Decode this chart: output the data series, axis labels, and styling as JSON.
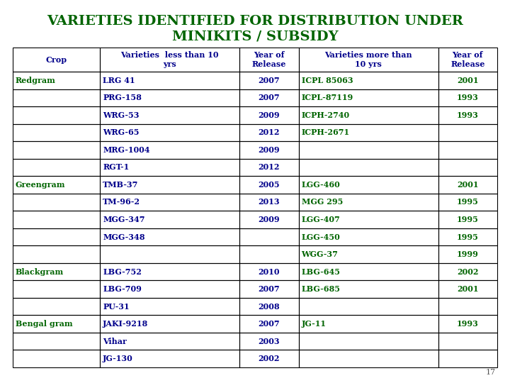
{
  "title_line1": "VARIETIES IDENTIFIED FOR DISTRIBUTION UNDER",
  "title_line2": "MINIKITS / SUBSIDY",
  "title_color": "#006400",
  "bg_color": "#ffffff",
  "header_color": "#00008B",
  "col_headers": [
    "Crop",
    "Varieties  less than 10\nyrs",
    "Year of\nRelease",
    "Varieties more than\n10 yrs",
    "Year of\nRelease"
  ],
  "rows": [
    [
      "Redgram",
      "LRG 41",
      "2007",
      "ICPL 85063",
      "2001"
    ],
    [
      "",
      "PRG-158",
      "2007",
      "ICPL-87119",
      "1993"
    ],
    [
      "",
      "WRG-53",
      "2009",
      "ICPH-2740",
      "1993"
    ],
    [
      "",
      "WRG-65",
      "2012",
      "ICPH-2671",
      ""
    ],
    [
      "",
      "MRG-1004",
      "2009",
      "",
      ""
    ],
    [
      "",
      "RGT-1",
      "2012",
      "",
      ""
    ],
    [
      "Greengram",
      "TMB-37",
      "2005",
      "LGG-460",
      "2001"
    ],
    [
      "",
      "TM-96-2",
      "2013",
      "MGG 295",
      "1995"
    ],
    [
      "",
      "MGG-347",
      "2009",
      "LGG-407",
      "1995"
    ],
    [
      "",
      "MGG-348",
      "",
      "LGG-450",
      "1995"
    ],
    [
      "",
      "",
      "",
      "WGG-37",
      "1999"
    ],
    [
      "Blackgram",
      "LBG-752",
      "2010",
      "LBG-645",
      "2002"
    ],
    [
      "",
      "LBG-709",
      "2007",
      "LBG-685",
      "2001"
    ],
    [
      "",
      "PU-31",
      "2008",
      "",
      ""
    ],
    [
      "Bengal gram",
      "JAKI-9218",
      "2007",
      "JG-11",
      "1993"
    ],
    [
      "",
      "Vihar",
      "2003",
      "",
      ""
    ],
    [
      "",
      "JG-130",
      "2002",
      "",
      ""
    ]
  ],
  "crop_col_color": "#006400",
  "var_less_color": "#00008B",
  "year_less_color": "#00008B",
  "var_more_color": "#006400",
  "year_more_color": "#006400",
  "page_number": "17",
  "title_fontsize": 14,
  "header_fontsize": 8,
  "cell_fontsize": 8
}
